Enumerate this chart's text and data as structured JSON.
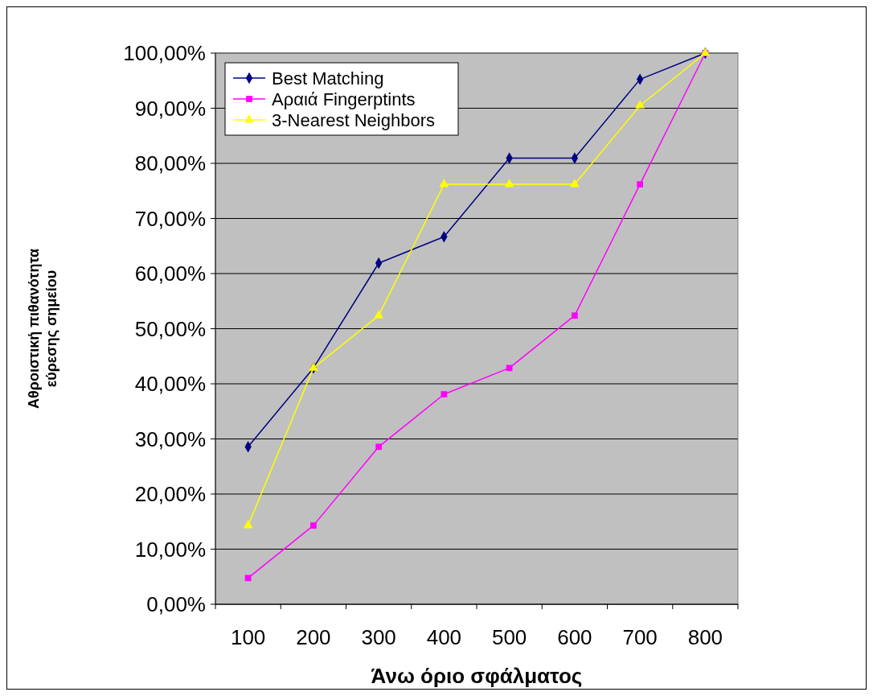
{
  "chart_data": {
    "type": "line",
    "xlabel": "Άνω όριο σφάλματος",
    "ylabel": "Αθροιστική πιθανότητα\nεύρεσης σημείου",
    "categories": [
      "100",
      "200",
      "300",
      "400",
      "500",
      "600",
      "700",
      "800"
    ],
    "series": [
      {
        "name": "Best Matching",
        "color": "#000080",
        "marker": "diamond",
        "values": [
          28.57,
          42.86,
          61.9,
          66.67,
          80.95,
          80.95,
          95.24,
          100
        ]
      },
      {
        "name": "Αραιά Fingerptints",
        "color": "#ff00ff",
        "marker": "square",
        "values": [
          4.76,
          14.29,
          28.57,
          38.1,
          42.86,
          52.38,
          76.19,
          100
        ]
      },
      {
        "name": "3-Nearest Neighbors",
        "color": "#ffff00",
        "marker": "triangle",
        "values": [
          14.29,
          42.86,
          52.38,
          76.19,
          76.19,
          76.19,
          90.48,
          100
        ]
      }
    ],
    "ylim": [
      0,
      100
    ],
    "yticks": [
      {
        "value": 0,
        "label": "0,00%"
      },
      {
        "value": 10,
        "label": "10,00%"
      },
      {
        "value": 20,
        "label": "20,00%"
      },
      {
        "value": 30,
        "label": "30,00%"
      },
      {
        "value": 40,
        "label": "40,00%"
      },
      {
        "value": 50,
        "label": "50,00%"
      },
      {
        "value": 60,
        "label": "60,00%"
      },
      {
        "value": 70,
        "label": "70,00%"
      },
      {
        "value": 80,
        "label": "80,00%"
      },
      {
        "value": 90,
        "label": "90,00%"
      },
      {
        "value": 100,
        "label": "100,00%"
      }
    ],
    "grid": "y",
    "legend": "top left"
  }
}
